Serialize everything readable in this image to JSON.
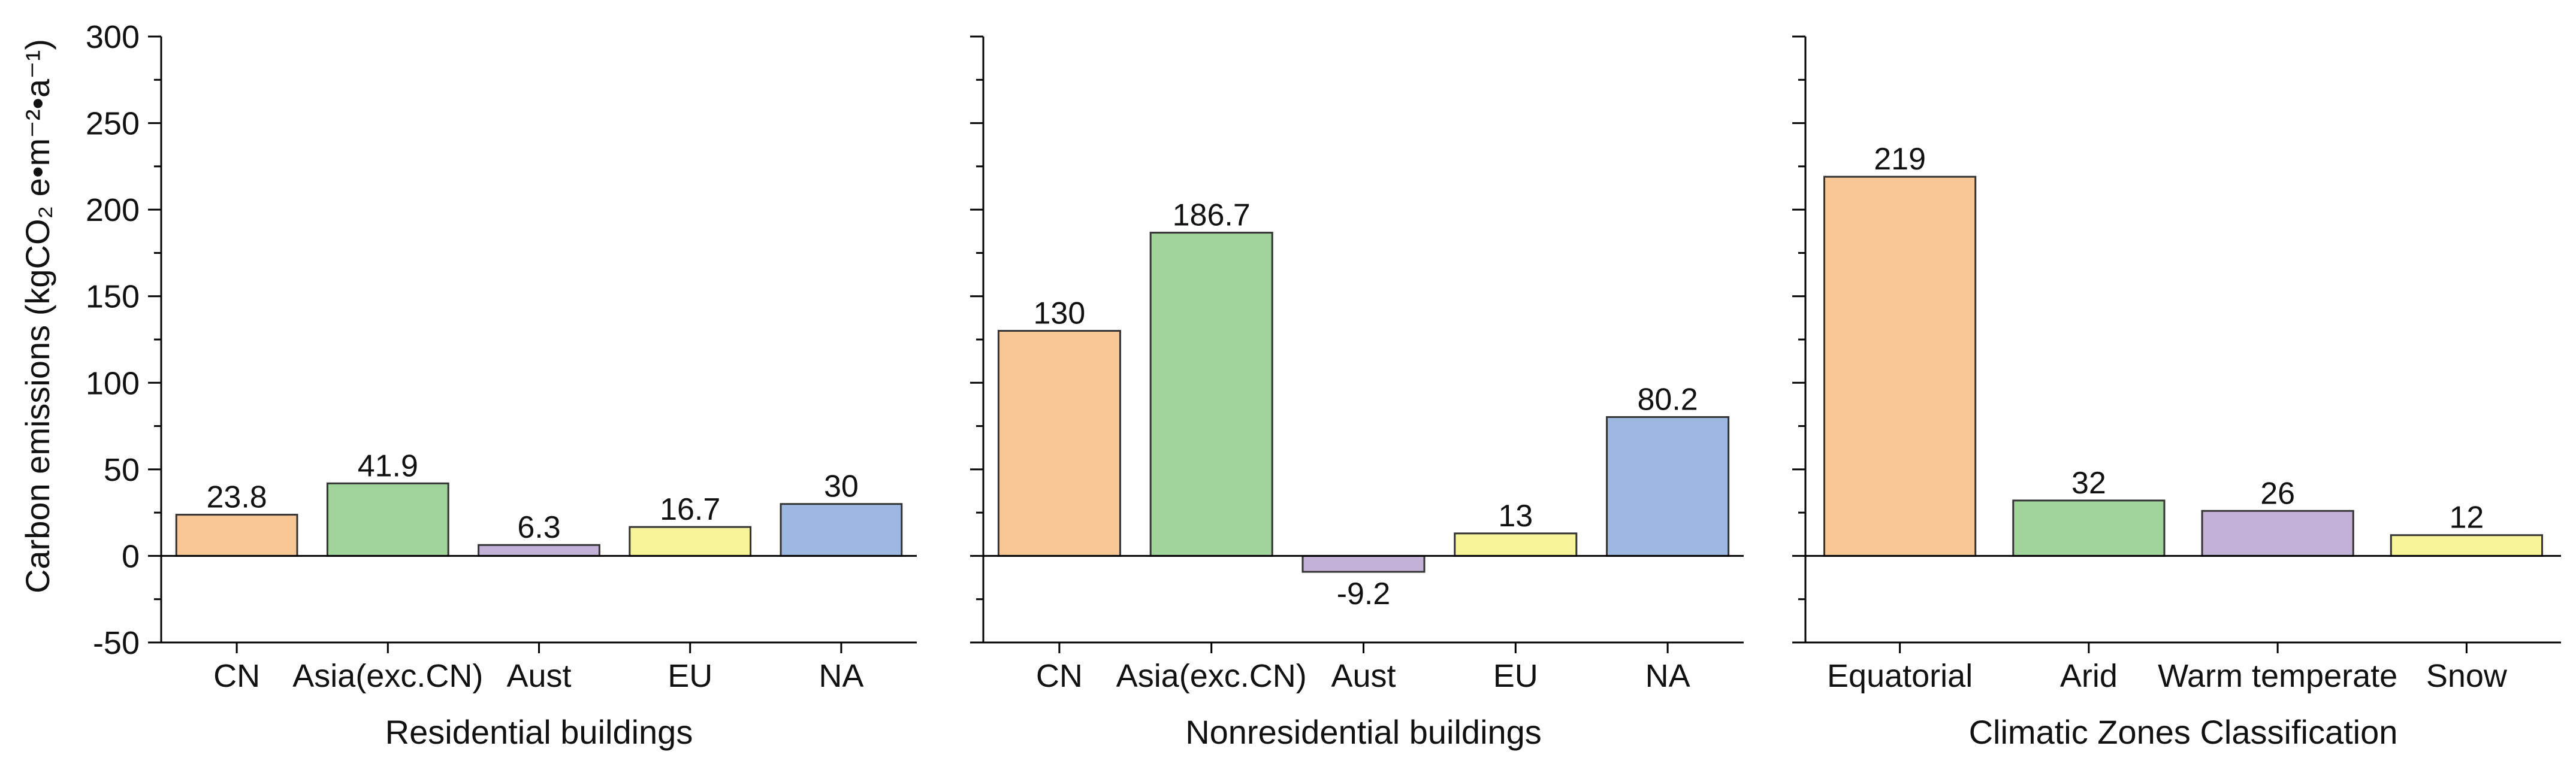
{
  "chart_data": {
    "type": "bar",
    "ylabel": "Carbon emissions (kgCO₂ e•m⁻²•a⁻¹)",
    "ylim": [
      -50,
      300
    ],
    "yticks": [
      -50,
      0,
      50,
      100,
      150,
      200,
      250,
      300
    ],
    "panels": [
      {
        "xlabel": "Residential buildings",
        "categories": [
          "CN",
          "Asia(exc.CN)",
          "Aust",
          "EU",
          "NA"
        ],
        "values": [
          23.8,
          41.9,
          6.3,
          16.7,
          30
        ],
        "labels": [
          "23.8",
          "41.9",
          "6.3",
          "16.7",
          "30"
        ],
        "colors": [
          "#F9C795",
          "#A0D49B",
          "#C4B1D8",
          "#F7F49A",
          "#9DB9E2"
        ]
      },
      {
        "xlabel": "Nonresidential buildings",
        "categories": [
          "CN",
          "Asia(exc.CN)",
          "Aust",
          "EU",
          "NA"
        ],
        "values": [
          130,
          186.7,
          -9.2,
          13,
          80.2
        ],
        "labels": [
          "130",
          "186.7",
          "-9.2",
          "13",
          "80.2"
        ],
        "colors": [
          "#F9C795",
          "#A0D49B",
          "#C4B1D8",
          "#F7F49A",
          "#9DB9E2"
        ]
      },
      {
        "xlabel": "Climatic Zones Classification",
        "categories": [
          "Equatorial",
          "Arid",
          "Warm temperate",
          "Snow"
        ],
        "values": [
          219,
          32,
          26,
          12
        ],
        "labels": [
          "219",
          "32",
          "26",
          "12"
        ],
        "colors": [
          "#F9C795",
          "#A0D49B",
          "#C4B1D8",
          "#F7F49A"
        ]
      }
    ]
  }
}
